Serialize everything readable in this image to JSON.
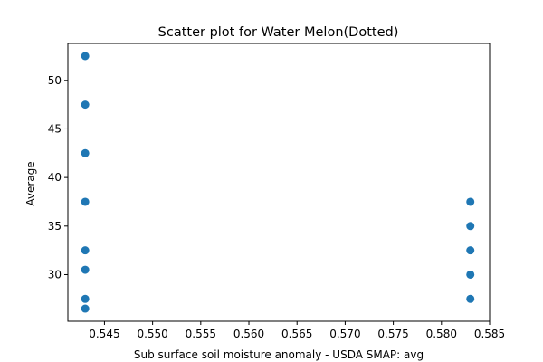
{
  "chart_data": {
    "type": "scatter",
    "title": "Scatter plot for Water Melon(Dotted)",
    "xlabel": "Sub surface soil moisture anomaly - USDA SMAP: avg",
    "ylabel": "Average",
    "xlim": [
      0.5412,
      0.585
    ],
    "ylim": [
      25.2,
      53.8
    ],
    "xticks": [
      0.545,
      0.55,
      0.555,
      0.56,
      0.565,
      0.57,
      0.575,
      0.58,
      0.585
    ],
    "xtick_labels": [
      "0.545",
      "0.550",
      "0.555",
      "0.560",
      "0.565",
      "0.570",
      "0.575",
      "0.580",
      "0.585"
    ],
    "yticks": [
      30,
      35,
      40,
      45,
      50
    ],
    "ytick_labels": [
      "30",
      "35",
      "40",
      "45",
      "50"
    ],
    "grid": false,
    "marker_color": "#1f77b4",
    "points": [
      {
        "x": 0.543,
        "y": 52.5
      },
      {
        "x": 0.543,
        "y": 47.5
      },
      {
        "x": 0.543,
        "y": 42.5
      },
      {
        "x": 0.543,
        "y": 37.5
      },
      {
        "x": 0.543,
        "y": 32.5
      },
      {
        "x": 0.543,
        "y": 30.5
      },
      {
        "x": 0.543,
        "y": 27.5
      },
      {
        "x": 0.543,
        "y": 26.5
      },
      {
        "x": 0.583,
        "y": 37.5
      },
      {
        "x": 0.583,
        "y": 35
      },
      {
        "x": 0.583,
        "y": 32.5
      },
      {
        "x": 0.583,
        "y": 30
      },
      {
        "x": 0.583,
        "y": 27.5
      }
    ]
  }
}
